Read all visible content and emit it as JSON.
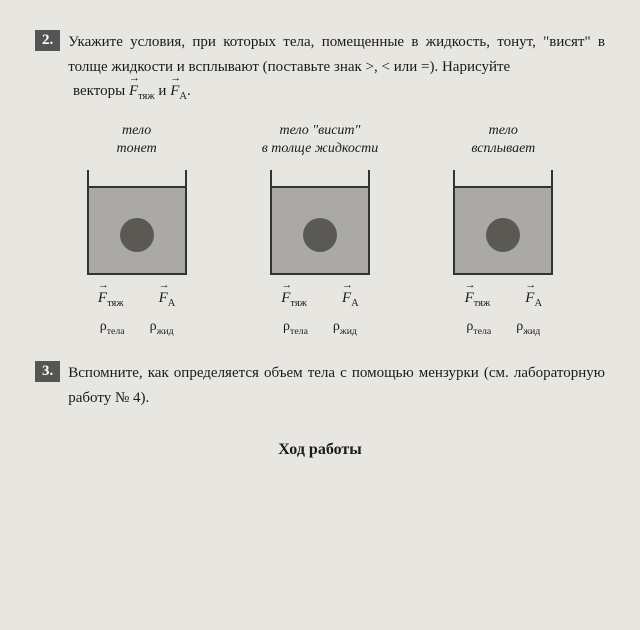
{
  "tasks": {
    "task2": {
      "number": "2.",
      "text": "Укажите условия, при которых тела, помещенные в жидкость, тонут, \"висят\" в толще жидкости и всплывают (поставьте знак >, < или =). Нарисуйте",
      "vectors_prefix": "векторы ",
      "vectors_and": " и ",
      "vectors_period": "."
    },
    "task3": {
      "number": "3.",
      "text": "Вспомните, как определяется объем тела с помощью мензурки (см. лабораторную работу № 4)."
    }
  },
  "diagrams": [
    {
      "label_line1": "тело",
      "label_line2": "тонет"
    },
    {
      "label_line1": "тело \"висит\"",
      "label_line2": "в толще жидкости"
    },
    {
      "label_line1": "тело",
      "label_line2": "всплывает"
    }
  ],
  "formulas": {
    "f_tyazh_sub": "тяж",
    "f_a_sub": "A",
    "rho_tela": "тела",
    "rho_zhid": "жид"
  },
  "section_title": "Ход работы",
  "styles": {
    "background": "#e8e6e0",
    "text_color": "#1a1a1a",
    "task_number_bg": "#555",
    "beaker_liquid": "#aaa9a5",
    "ball_color": "#5a5954",
    "beaker_border": "#333",
    "beaker_width": 100,
    "beaker_height": 105,
    "ball_diameter": 34,
    "air_gap_height": 18
  }
}
